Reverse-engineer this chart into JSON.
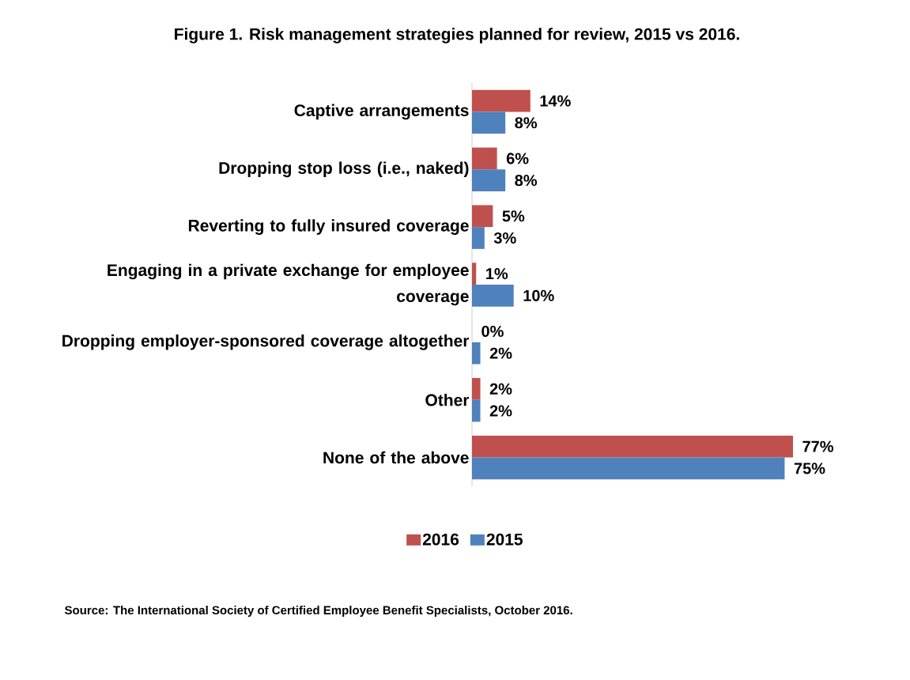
{
  "chart_data": {
    "type": "bar",
    "orientation": "horizontal",
    "title": "Figure 1.  Risk management strategies planned for review, 2015  vs 2016.",
    "categories": [
      "Captive arrangements",
      "Dropping stop loss (i.e., naked)",
      "Reverting to fully insured coverage",
      "Engaging in a private exchange for employee coverage",
      "Dropping employer-sponsored coverage altogether",
      "Other",
      "None of the above"
    ],
    "series": [
      {
        "name": "2016",
        "color": "#c0504d",
        "values": [
          14,
          6,
          5,
          1,
          0,
          2,
          77
        ],
        "value_labels": [
          "14%",
          "6%",
          "5%",
          "1%",
          "0%",
          "2%",
          "77%"
        ]
      },
      {
        "name": "2015",
        "color": "#4f81bd",
        "values": [
          8,
          8,
          3,
          10,
          2,
          2,
          75
        ],
        "value_labels": [
          "8%",
          "8%",
          "3%",
          "10%",
          "2%",
          "2%",
          "75%"
        ]
      }
    ],
    "legend": "bottom",
    "annotations": [
      "Source: The International Society of Certified Employee Benefit Specialists, October 2016."
    ]
  }
}
